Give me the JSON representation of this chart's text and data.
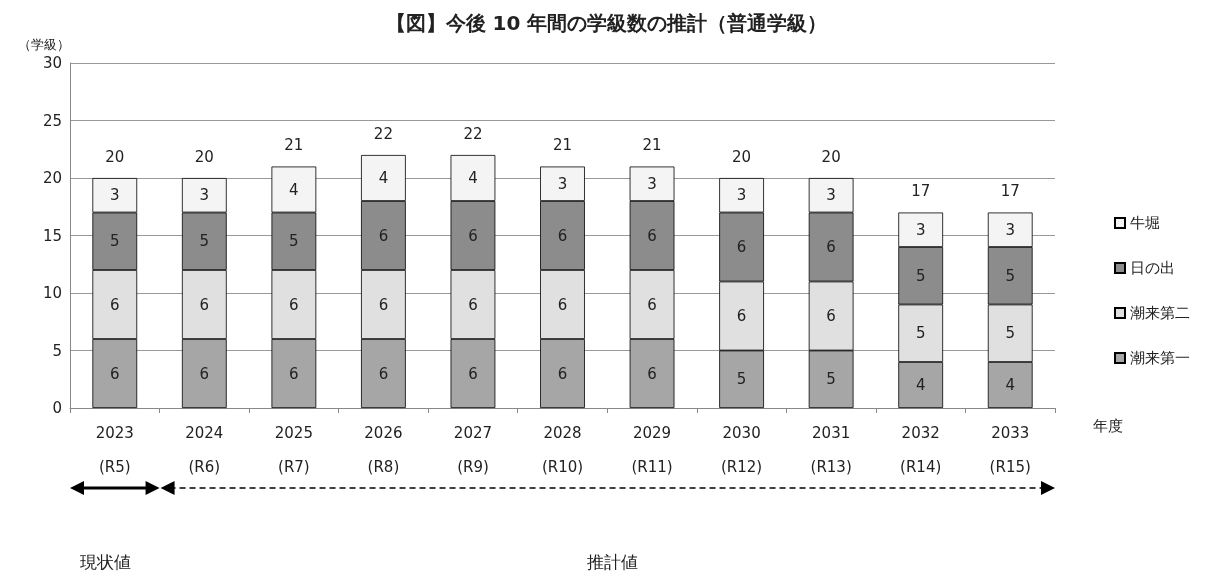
{
  "chart_data": {
    "type": "bar",
    "title": "【図】今後 10 年間の学級数の推計（普通学級）",
    "ylabel": "（学級）",
    "xlabel": "年度",
    "categories": [
      "2023\n(R5)",
      "2024\n(R6)",
      "2025\n(R7)",
      "2026\n(R8)",
      "2027\n(R9)",
      "2028\n(R10)",
      "2029\n(R11)",
      "2030\n(R12)",
      "2031\n(R13)",
      "2032\n(R14)",
      "2033\n(R15)"
    ],
    "stacked": true,
    "series": [
      {
        "name": "潮来第一",
        "color": "#a6a6a6",
        "values": [
          6,
          6,
          6,
          6,
          6,
          6,
          6,
          5,
          5,
          4,
          4
        ]
      },
      {
        "name": "潮来第二",
        "color": "#e0e0e0",
        "values": [
          6,
          6,
          6,
          6,
          6,
          6,
          6,
          6,
          6,
          5,
          5
        ]
      },
      {
        "name": "日の出",
        "color": "#8c8c8c",
        "values": [
          5,
          5,
          5,
          6,
          6,
          6,
          6,
          6,
          6,
          5,
          5
        ]
      },
      {
        "name": "牛堀",
        "color": "#f4f4f4",
        "values": [
          3,
          3,
          4,
          4,
          4,
          3,
          3,
          3,
          3,
          3,
          3
        ]
      }
    ],
    "totals": [
      "20",
      "20",
      "21",
      "22",
      "22",
      "21",
      "21",
      "20",
      "20",
      "17",
      "17"
    ],
    "data_labels": true,
    "ylim": [
      0,
      30
    ],
    "yticks": [
      0,
      5,
      10,
      15,
      20,
      25,
      30
    ],
    "grid": "y",
    "legend": "right",
    "annotations": [
      "現状値",
      "推計値"
    ]
  }
}
